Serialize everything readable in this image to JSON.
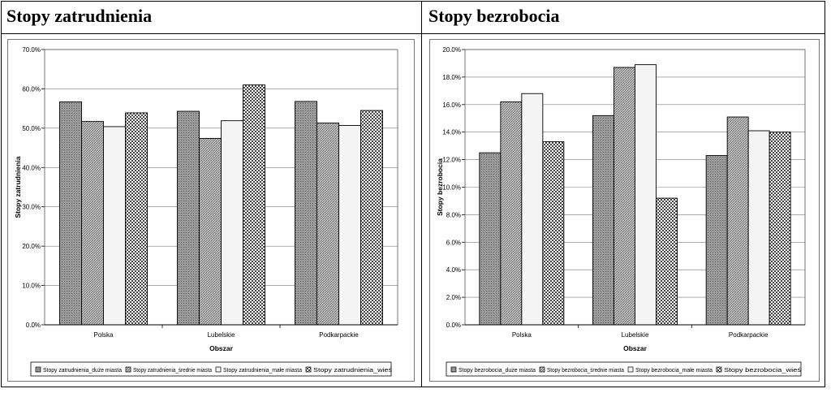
{
  "panels": [
    {
      "title": "Stopy zatrudnienia"
    },
    {
      "title": "Stopy bezrobocia"
    }
  ],
  "chart_data": [
    {
      "type": "bar",
      "title": "",
      "xlabel": "Obszar",
      "ylabel": "Stopy zatrudnienia",
      "categories": [
        "Polska",
        "Lubelskie",
        "Podkarpackie"
      ],
      "ylim": [
        0,
        70
      ],
      "yticks": [
        "0.0%",
        "10.0%",
        "20.0%",
        "30.0%",
        "40.0%",
        "50.0%",
        "60.0%",
        "70.0%"
      ],
      "grid": true,
      "legend_position": "bottom",
      "series": [
        {
          "name": "Stopy zatrudnienia_duże miasta",
          "values": [
            56.7,
            54.3,
            56.8
          ],
          "color": "#8c8c8c",
          "pattern": "dots"
        },
        {
          "name": "Stopy zatrudnienia_średnie miasta",
          "values": [
            51.7,
            47.4,
            51.3
          ],
          "color": "#a6a6a6",
          "pattern": "hatch"
        },
        {
          "name": "Stopy zatrudnienia_małe miasta",
          "values": [
            50.4,
            51.9,
            50.7
          ],
          "color": "#f4f4f4",
          "pattern": "none"
        },
        {
          "name": "Stopy zatrudnienia_wieś",
          "values": [
            53.9,
            61.0,
            54.5
          ],
          "color": "#8a8a8a",
          "pattern": "check"
        }
      ]
    },
    {
      "type": "bar",
      "title": "",
      "xlabel": "Obszar",
      "ylabel": "Stopy bezrobocia",
      "categories": [
        "Polska",
        "Lubelskie",
        "Podkarpackie"
      ],
      "ylim": [
        0,
        20
      ],
      "yticks": [
        "0.0%",
        "2.0%",
        "4.0%",
        "6.0%",
        "8.0%",
        "10.0%",
        "12.0%",
        "14.0%",
        "16.0%",
        "18.0%",
        "20.0%"
      ],
      "grid": true,
      "legend_position": "bottom",
      "series": [
        {
          "name": "Stopy bezrobocia_duże miasta",
          "values": [
            12.5,
            15.2,
            12.3
          ],
          "color": "#8c8c8c",
          "pattern": "dots"
        },
        {
          "name": "Stopy bezrobocia_średnie miasta",
          "values": [
            16.2,
            18.7,
            15.1
          ],
          "color": "#a6a6a6",
          "pattern": "hatch"
        },
        {
          "name": "Stopy bezrobocia_małe miasta",
          "values": [
            16.8,
            18.9,
            14.1
          ],
          "color": "#f4f4f4",
          "pattern": "none"
        },
        {
          "name": "Stopy bezrobocia_wieś",
          "values": [
            13.3,
            9.2,
            14.0
          ],
          "color": "#8a8a8a",
          "pattern": "check"
        }
      ]
    }
  ]
}
